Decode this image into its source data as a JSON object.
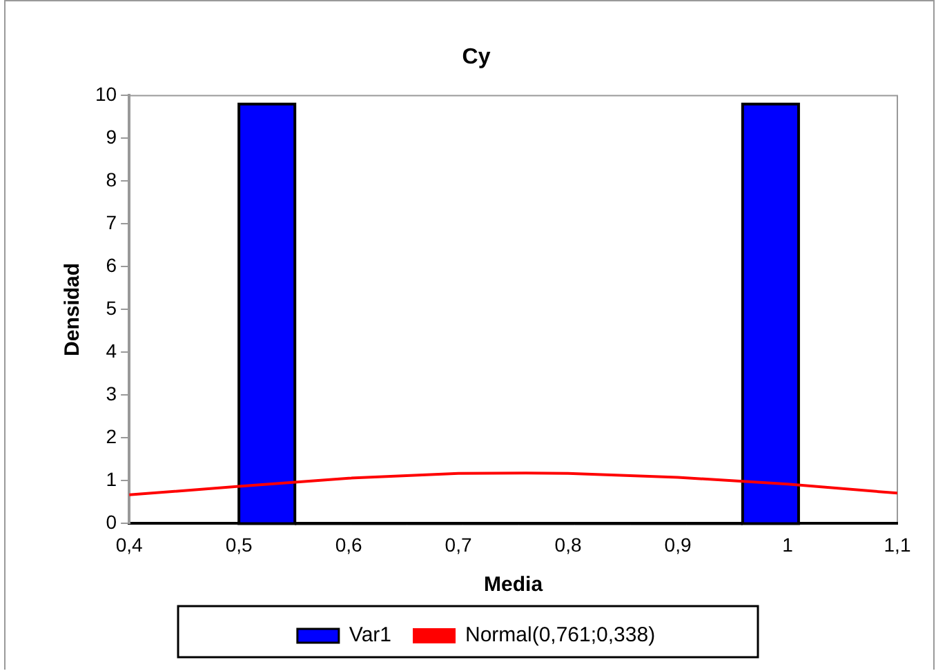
{
  "chart_data": {
    "type": "histogram",
    "title": "Cy",
    "xlabel": "Media",
    "ylabel": "Densidad",
    "bins": [
      0.5,
      0.551,
      0.602,
      0.653,
      0.704,
      0.755,
      0.806,
      0.857,
      0.908,
      0.959,
      1.01
    ],
    "series": [
      {
        "name": "Var1",
        "type": "histogram",
        "color": "#0000ff",
        "values": [
          9.8,
          0,
          0,
          0,
          0,
          0,
          0,
          0,
          0,
          9.8
        ]
      },
      {
        "name": "Normal(0,761;0,338)",
        "type": "line",
        "color": "#ff0000",
        "x": [
          0.4,
          0.5,
          0.6,
          0.7,
          0.761,
          0.8,
          0.9,
          1.0,
          1.1
        ],
        "values": [
          0.67,
          0.87,
          1.06,
          1.17,
          1.18,
          1.17,
          1.08,
          0.92,
          0.71
        ]
      }
    ],
    "xlim": [
      0.4,
      1.1
    ],
    "xticks": [
      {
        "value": 0.4,
        "label": "0,4"
      },
      {
        "value": 0.5,
        "label": "0,5"
      },
      {
        "value": 0.6,
        "label": "0,6"
      },
      {
        "value": 0.7,
        "label": "0,7"
      },
      {
        "value": 0.8,
        "label": "0,8"
      },
      {
        "value": 0.9,
        "label": "0,9"
      },
      {
        "value": 1,
        "label": "1"
      },
      {
        "value": 1.1,
        "label": "1,1"
      }
    ],
    "ylim": [
      0,
      10
    ],
    "yticks": [
      0,
      1,
      2,
      3,
      4,
      5,
      6,
      7,
      8,
      9,
      10
    ],
    "grid": false,
    "legend": "bottom",
    "marker": "none",
    "line_style": "solid"
  }
}
